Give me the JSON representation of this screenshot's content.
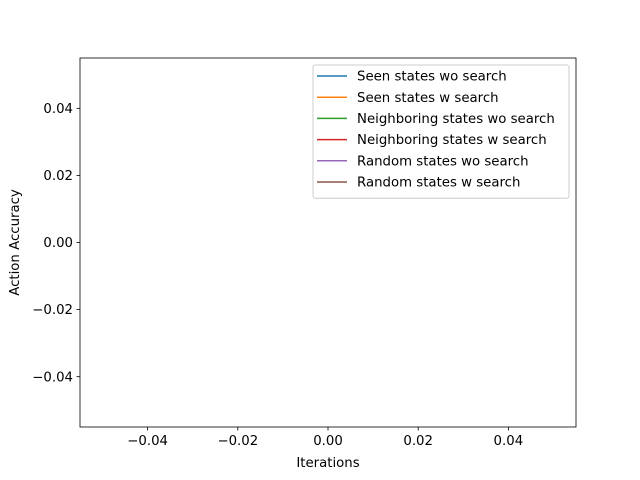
{
  "chart_data": {
    "type": "line",
    "title": "",
    "xlabel": "Iterations",
    "ylabel": "Action Accuracy",
    "xlim": [
      -0.055,
      0.055
    ],
    "ylim": [
      -0.055,
      0.055
    ],
    "x_ticks": [
      -0.04,
      -0.02,
      0.0,
      0.02,
      0.04
    ],
    "x_tick_labels": [
      "−0.04",
      "−0.02",
      "0.00",
      "0.02",
      "0.04"
    ],
    "y_ticks": [
      -0.04,
      -0.02,
      0.0,
      0.02,
      0.04
    ],
    "y_tick_labels": [
      "−0.04",
      "−0.02",
      "0.00",
      "0.02",
      "0.04"
    ],
    "grid": false,
    "legend_position": "upper-right",
    "series": [
      {
        "name": "Seen states wo search",
        "color": "#1f77b4",
        "x": [],
        "y": []
      },
      {
        "name": "Seen states w search",
        "color": "#ff7f0e",
        "x": [],
        "y": []
      },
      {
        "name": "Neighboring states wo search",
        "color": "#2ca02c",
        "x": [],
        "y": []
      },
      {
        "name": "Neighboring states w search",
        "color": "#d62728",
        "x": [],
        "y": []
      },
      {
        "name": "Random states wo search",
        "color": "#9467bd",
        "x": [],
        "y": []
      },
      {
        "name": "Random states w search",
        "color": "#8c564b",
        "x": [],
        "y": []
      }
    ]
  }
}
